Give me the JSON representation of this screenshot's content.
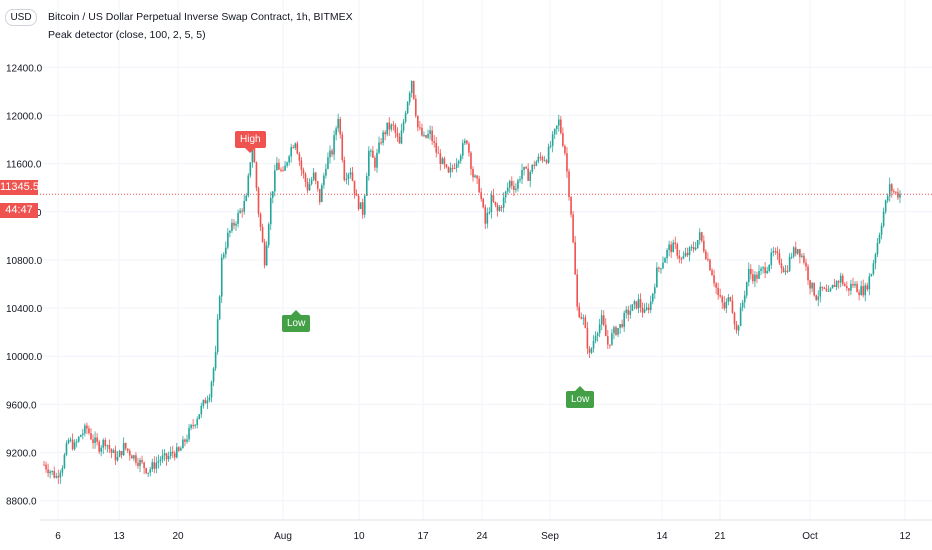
{
  "header": {
    "title": "Bitcoin / US Dollar Perpetual Inverse Swap Contract, 1h, BITMEX",
    "indicator": "Peak detector (close, 100, 2, 5, 5)",
    "currency": "USD"
  },
  "price_badges": {
    "last_price": "11345.5",
    "countdown": "44:47"
  },
  "markers": [
    {
      "label": "High",
      "kind": "high"
    },
    {
      "label": "Low",
      "kind": "low"
    },
    {
      "label": "Low",
      "kind": "low"
    }
  ],
  "colors": {
    "up": "#26a69a",
    "down": "#ef5350",
    "high_marker": "#ef5350",
    "low_marker": "#43a047",
    "grid": "#f0f3fa"
  },
  "chart_data": {
    "type": "candlestick",
    "ylim": [
      8640,
      12560
    ],
    "y_ticks": [
      {
        "value": 8800,
        "label": "8800.0"
      },
      {
        "value": 9200,
        "label": "9200.0"
      },
      {
        "value": 9600,
        "label": "9600.0"
      },
      {
        "value": 10000,
        "label": "10000.0"
      },
      {
        "value": 10400,
        "label": "10400.0"
      },
      {
        "value": 10800,
        "label": "10800.0"
      },
      {
        "value": 11200,
        "label": "11200.0"
      },
      {
        "value": 11600,
        "label": "11600.0"
      },
      {
        "value": 12000,
        "label": "12000.0"
      },
      {
        "value": 12400,
        "label": "12400.0"
      }
    ],
    "x_ticks": [
      "6",
      "13",
      "20",
      "Aug",
      "10",
      "17",
      "24",
      "Sep",
      "14",
      "21",
      "Oct",
      "12"
    ],
    "x_start": "Jul 5",
    "last_price": 11345.5,
    "close_series": [
      9100,
      9050,
      9000,
      9100,
      9300,
      9250,
      9350,
      9400,
      9300,
      9250,
      9300,
      9200,
      9150,
      9250,
      9200,
      9150,
      9100,
      9050,
      9100,
      9150,
      9150,
      9200,
      9200,
      9300,
      9400,
      9500,
      9600,
      9700,
      10000,
      10800,
      11000,
      11100,
      11200,
      11300,
      11800,
      11200,
      10800,
      11300,
      11600,
      11500,
      11700,
      11800,
      11550,
      11400,
      11500,
      11300,
      11600,
      11700,
      12000,
      11500,
      11550,
      11300,
      11200,
      11700,
      11600,
      11800,
      11900,
      11900,
      11750,
      12050,
      12300,
      11900,
      11800,
      11850,
      11700,
      11600,
      11500,
      11600,
      11700,
      11800,
      11500,
      11400,
      11100,
      11300,
      11200,
      11300,
      11450,
      11400,
      11550,
      11500,
      11600,
      11650,
      11650,
      11800,
      11950,
      11700,
      11200,
      10400,
      10300,
      10000,
      10200,
      10300,
      10100,
      10200,
      10250,
      10350,
      10400,
      10450,
      10350,
      10450,
      10700,
      10800,
      10900,
      10900,
      10800,
      10850,
      10900,
      11000,
      10850,
      10700,
      10500,
      10400,
      10500,
      10200,
      10450,
      10700,
      10650,
      10700,
      10750,
      10850,
      10800,
      10700,
      10850,
      10900,
      10800,
      10600,
      10500,
      10550,
      10500,
      10600,
      10650,
      10550,
      10600,
      10550,
      10550,
      10700,
      10950,
      11200,
      11400,
      11350,
      11345.5
    ]
  }
}
